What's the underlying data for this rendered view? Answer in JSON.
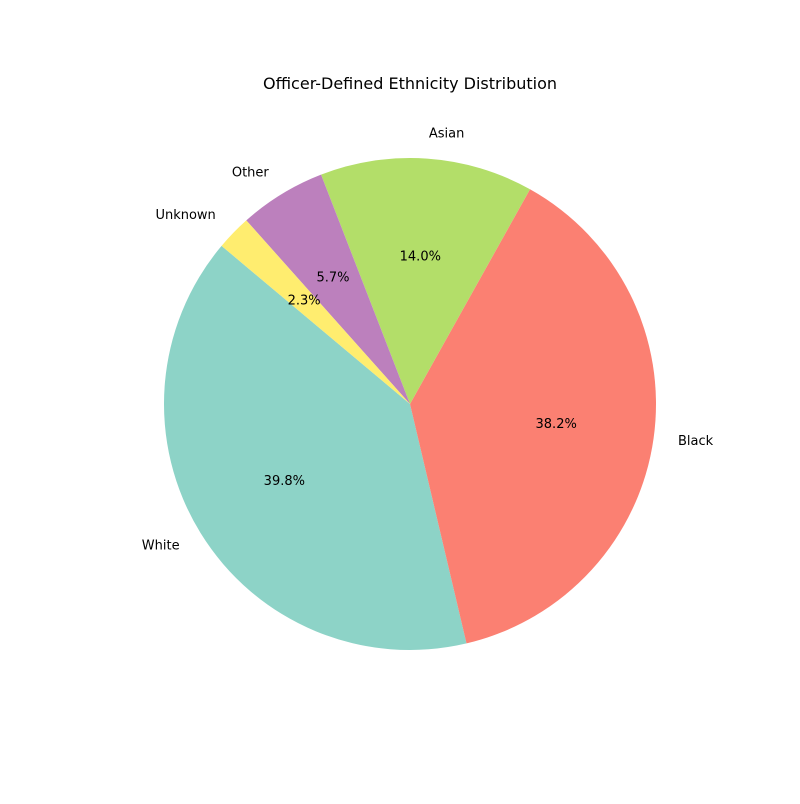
{
  "chart_data": {
    "type": "pie",
    "title": "Officer-Defined Ethnicity Distribution",
    "categories": [
      "White",
      "Black",
      "Asian",
      "Other",
      "Unknown"
    ],
    "values": [
      39.8,
      38.2,
      14.0,
      5.7,
      2.3
    ],
    "percent_labels": [
      "39.8%",
      "38.2%",
      "14.0%",
      "5.7%",
      "2.3%"
    ],
    "colors": [
      "#8dd3c7",
      "#fb8072",
      "#b3de69",
      "#bc80bd",
      "#ffed6f"
    ],
    "start_angle_deg": 140,
    "direction": "counterclockwise",
    "legend": "none"
  }
}
